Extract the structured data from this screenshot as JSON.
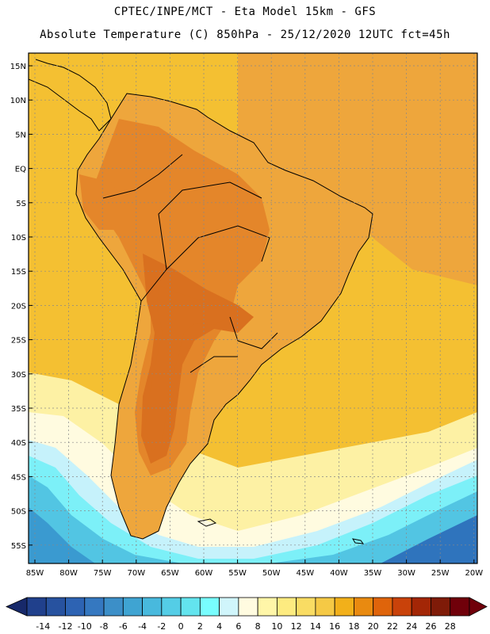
{
  "title_line1": "CPTEC/INPE/MCT -  Eta Model 15km - GFS",
  "title_line2": "Absolute Temperature (C) 850hPa - 25/12/2020 12UTC fct=45h",
  "lat_labels": [
    "15N",
    "10N",
    "5N",
    "EQ",
    "5S",
    "10S",
    "15S",
    "20S",
    "25S",
    "30S",
    "35S",
    "40S",
    "45S",
    "50S",
    "55S"
  ],
  "lon_labels": [
    "85W",
    "80W",
    "75W",
    "70W",
    "65W",
    "60W",
    "55W",
    "50W",
    "45W",
    "40W",
    "35W",
    "30W",
    "25W",
    "20W"
  ],
  "colorbar": {
    "labels": [
      "-14",
      "-12",
      "-10",
      "-8",
      "-6",
      "-4",
      "-2",
      "0",
      "2",
      "4",
      "6",
      "8",
      "10",
      "12",
      "14",
      "16",
      "18",
      "20",
      "22",
      "24",
      "26",
      "28"
    ],
    "colors": [
      "#20408c",
      "#27529f",
      "#2d63b3",
      "#3578c0",
      "#3c8fc8",
      "#3fa4d2",
      "#48b9dd",
      "#54cde6",
      "#63e4ee",
      "#78fdfe",
      "#d0f5fb",
      "#fffbe0",
      "#fff6a8",
      "#fdeb80",
      "#f9dc63",
      "#f5c945",
      "#f2b01a",
      "#e98a10",
      "#df640b",
      "#c9420a",
      "#a32606",
      "#7f1b08",
      "#70000a"
    ],
    "under_color": "#17296a"
  },
  "fill_colors": {
    "ocean_warm": "#f4c032",
    "land_hot": "#eea63c",
    "land_hotter": "#e4862a",
    "land_hottest": "#d9701f",
    "cool_band": "#fdf1a4",
    "pale": "#fffbe0",
    "ice_light": "#c6f2fb",
    "cyan": "#7cf0f8",
    "blue_a": "#52c5e3",
    "blue_b": "#3a9ad0",
    "blue_c": "#2f74bd"
  }
}
